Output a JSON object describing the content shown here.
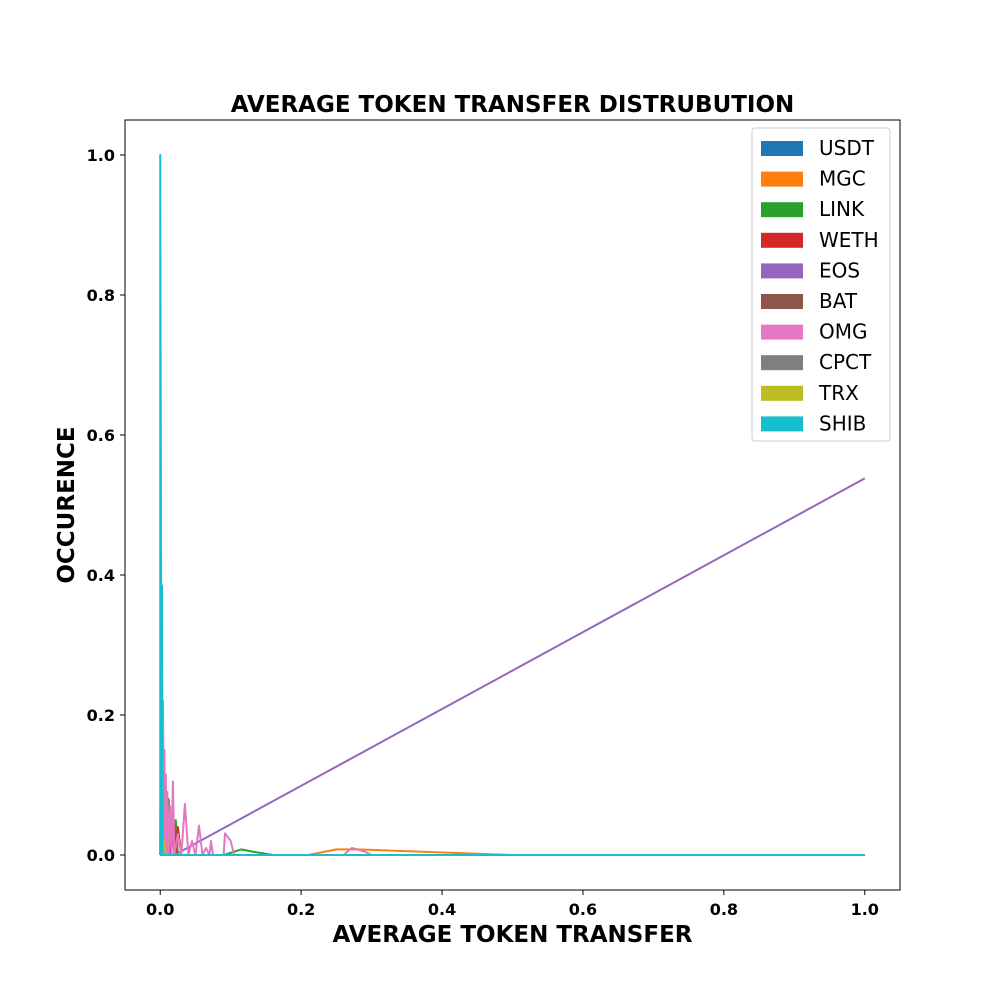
{
  "chart_data": {
    "type": "line",
    "title": "AVERAGE TOKEN TRANSFER DISTRUBUTION",
    "xlabel": "AVERAGE TOKEN TRANSFER",
    "ylabel": "OCCURENCE",
    "xlim": [
      -0.05,
      1.05
    ],
    "ylim": [
      -0.05,
      1.05
    ],
    "xticks": [
      0.0,
      0.2,
      0.4,
      0.6,
      0.8,
      1.0
    ],
    "xtick_labels": [
      "0.0",
      "0.2",
      "0.4",
      "0.6",
      "0.8",
      "1.0"
    ],
    "yticks": [
      0.0,
      0.2,
      0.4,
      0.6,
      0.8,
      1.0
    ],
    "ytick_labels": [
      "0.0",
      "0.2",
      "0.4",
      "0.6",
      "0.8",
      "1.0"
    ],
    "grid": false,
    "legend_position": "top-right",
    "series": [
      {
        "name": "USDT",
        "color": "#1f77b4",
        "x": [
          0.0,
          0.002,
          0.004,
          0.01,
          1.0
        ],
        "y": [
          0.0,
          0.35,
          0.0,
          0.0,
          0.0
        ]
      },
      {
        "name": "MGC",
        "color": "#ff7f0e",
        "x": [
          0.0,
          0.21,
          0.25,
          0.28,
          0.5,
          1.0
        ],
        "y": [
          0.0,
          0.0,
          0.008,
          0.008,
          0.0,
          0.0
        ]
      },
      {
        "name": "LINK",
        "color": "#2ca02c",
        "x": [
          0.0,
          0.01,
          0.012,
          0.015,
          0.018,
          0.02,
          0.022,
          0.025,
          0.03,
          0.09,
          0.115,
          0.13,
          0.16,
          1.0
        ],
        "y": [
          0.0,
          0.0,
          0.08,
          0.0,
          0.07,
          0.0,
          0.05,
          0.0,
          0.0,
          0.0,
          0.008,
          0.005,
          0.0,
          0.0
        ]
      },
      {
        "name": "WETH",
        "color": "#d62728",
        "x": [
          0.01,
          0.013,
          0.015,
          0.02,
          0.022,
          0.025,
          0.03
        ],
        "y": [
          0.0,
          0.04,
          0.0,
          0.04,
          0.0,
          0.04,
          0.0
        ]
      },
      {
        "name": "EOS",
        "color": "#9467bd",
        "x": [
          0.02,
          1.0
        ],
        "y": [
          0.0,
          0.538
        ]
      },
      {
        "name": "BAT",
        "color": "#8c564b",
        "x": [
          0.0,
          0.005,
          0.008,
          0.01,
          1.0
        ],
        "y": [
          0.0,
          0.06,
          0.0,
          0.0,
          0.0
        ]
      },
      {
        "name": "OMG",
        "color": "#e377c2",
        "x": [
          0.003,
          0.004,
          0.005,
          0.006,
          0.007,
          0.008,
          0.009,
          0.01,
          0.012,
          0.014,
          0.016,
          0.018,
          0.02,
          0.025,
          0.03,
          0.035,
          0.04,
          0.045,
          0.05,
          0.055,
          0.06,
          0.065,
          0.07,
          0.072,
          0.075,
          0.09,
          0.092,
          0.1,
          0.105,
          0.26,
          0.272,
          0.29,
          0.3,
          1.0
        ],
        "y": [
          0.0,
          0.22,
          0.0,
          0.15,
          0.0,
          0.115,
          0.0,
          0.09,
          0.0,
          0.07,
          0.0,
          0.105,
          0.0,
          0.03,
          0.0,
          0.073,
          0.0,
          0.02,
          0.0,
          0.042,
          0.0,
          0.01,
          0.0,
          0.02,
          0.0,
          0.0,
          0.031,
          0.02,
          0.0,
          0.0,
          0.01,
          0.005,
          0.0,
          0.0
        ]
      },
      {
        "name": "CPCT",
        "color": "#7f7f7f",
        "x": [
          0.0,
          1.0
        ],
        "y": [
          0.0,
          0.0
        ]
      },
      {
        "name": "TRX",
        "color": "#bcbd22",
        "x": [
          0.0,
          0.005,
          0.008,
          1.0
        ],
        "y": [
          0.0,
          0.02,
          0.0,
          0.0
        ]
      },
      {
        "name": "SHIB",
        "color": "#17becf",
        "x": [
          0.0,
          0.0,
          0.002,
          0.0025,
          0.003,
          1.0
        ],
        "y": [
          0.0,
          1.0,
          0.0,
          0.385,
          0.0,
          0.0
        ]
      }
    ]
  }
}
